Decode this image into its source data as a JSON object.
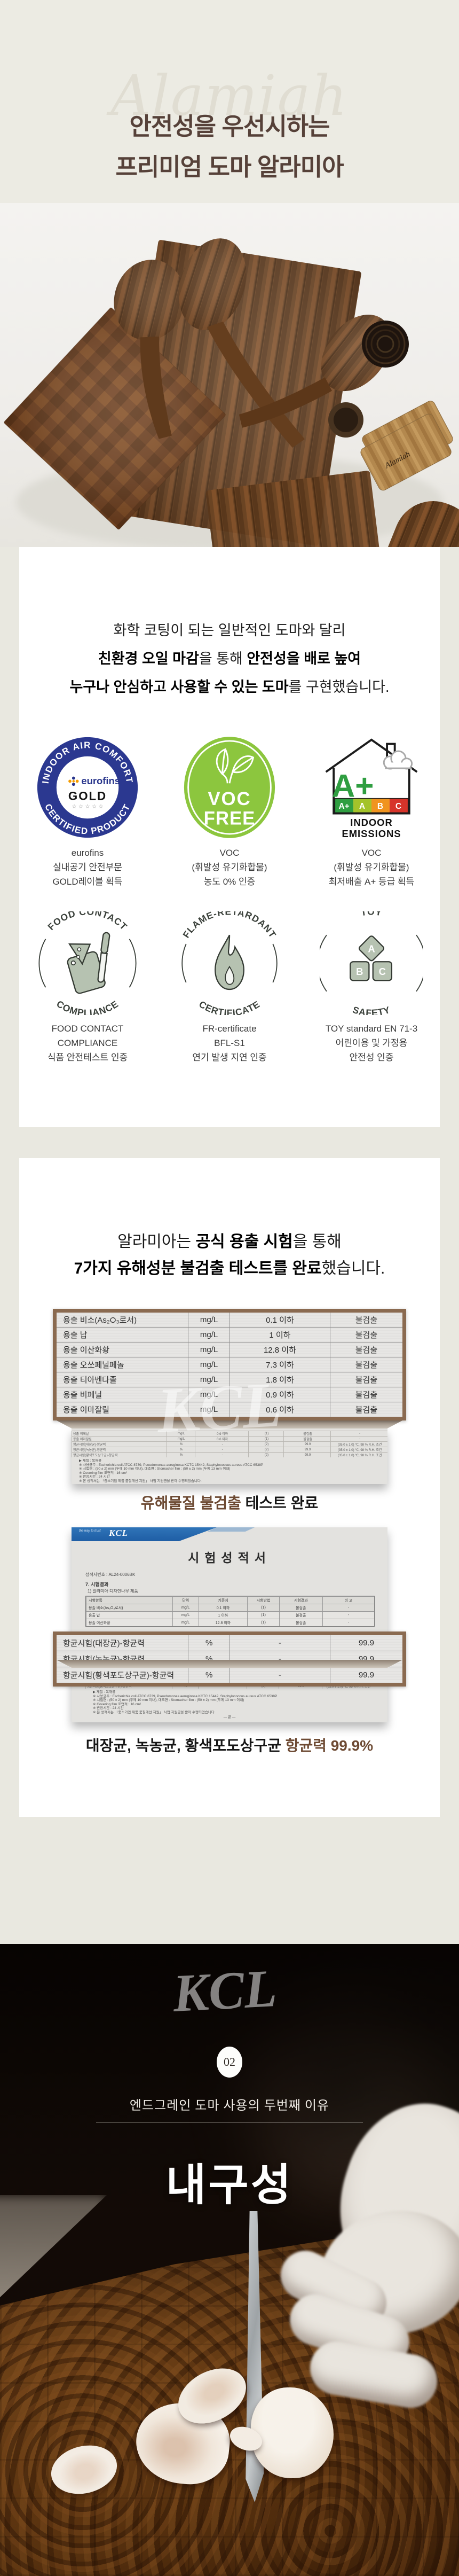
{
  "hero": {
    "watermark": "Alamiah",
    "title1": "안전성을 우선시하는",
    "title2": "프리미엄 도마 알라미아"
  },
  "photo": {
    "brand_signature": "Alamiah"
  },
  "intro": {
    "l1": "화학 코팅이 되는 일반적인 도마와 달리",
    "l2a": "친환경 오일 마감",
    "l2b": "을 통해 ",
    "l2c": "안전성을 배로 높여",
    "l3a": "누구나 안심하고 사용할 수 있는 도마",
    "l3b": "를 구현했습니다."
  },
  "badges": {
    "row1": [
      {
        "arc_top": "INDOOR AIR COMFORT",
        "arc_bottom": "CERTIFIED PRODUCT",
        "center1": "eurofins",
        "center2": "GOLD",
        "stars": "☆ ☆ ☆ ☆ ☆",
        "cap1": "eurofins",
        "cap2": "실내공기 안전부문",
        "cap3": "GOLD레이블 획득"
      },
      {
        "line1": "VOC",
        "line2": "FREE",
        "cap1": "VOC",
        "cap2": "(휘발성 유기화합물)",
        "cap3": "농도 0% 인증"
      },
      {
        "grade": "A+",
        "scale": [
          "A+",
          "A",
          "B",
          "C"
        ],
        "label1": "INDOOR",
        "label2": "EMISSIONS",
        "cap1": "VOC",
        "cap2": "(휘발성 유기화합물)",
        "cap3": "최저배출 A+ 등급 획득"
      }
    ],
    "row2": [
      {
        "arc_top": "FOOD CONTACT",
        "arc_bottom": "COMPLIANCE",
        "cap1": "FOOD CONTACT",
        "cap2": "COMPLIANCE",
        "cap3": "식품 안전테스트 인증"
      },
      {
        "arc_top": "FLAME-RETARDANT",
        "arc_bottom": "CERTIFICATE",
        "cap1": "FR-certificate",
        "cap2": "BFL-S1",
        "cap3": "연기 발생 지연 인증"
      },
      {
        "arc_top": "TOY",
        "arc_bottom": "SAFETY",
        "blocks": [
          "A",
          "B",
          "C"
        ],
        "cap1": "TOY standard EN 71-3",
        "cap2": "어린이용 및 가정용",
        "cap3": "안전성 인증"
      }
    ]
  },
  "leach": {
    "h1a": "알라미아는 ",
    "h1b": "공식 용출 시험",
    "h1c": "을 통해",
    "h2a": "7가지 유해성분 불검출 테스트를 완료",
    "h2b": "했습니다."
  },
  "table1": {
    "rows": [
      [
        "용출 비소(As₂O₃로서)",
        "mg/L",
        "0.1 이하",
        "불검출"
      ],
      [
        "용출 납",
        "mg/L",
        "1 이하",
        "불검출"
      ],
      [
        "용출 이산화황",
        "mg/L",
        "12.8 이하",
        "불검출"
      ],
      [
        "용출 오쏘페닐페놀",
        "mg/L",
        "7.3 이하",
        "불검출"
      ],
      [
        "용출 티아벤다졸",
        "mg/L",
        "1.8 이하",
        "불검출"
      ],
      [
        "용출 비페닐",
        "mg/L",
        "0.9 이하",
        "불검출"
      ],
      [
        "용출 이마잘릴",
        "mg/L",
        "0.6 이하",
        "불검출"
      ]
    ]
  },
  "caption1": {
    "brown": "유해물질 불검출",
    "black": " 테스트 완료"
  },
  "report": {
    "tagline": "the way to trust",
    "logo": "KCL",
    "watermark": "KCL",
    "title": "시험성적서",
    "no": "성적서번호 : AL24-0006BK",
    "sec": "7. 시험결과",
    "sub": "1) 알라미아 디자인나무 제품",
    "cols": [
      "시험항목",
      "단위",
      "기준치",
      "시험방법",
      "시험결과",
      "비 고"
    ],
    "rows": [
      [
        "용출 비소(As₂O₃로서)",
        "mg/L",
        "0.1 이하",
        "(1)",
        "불검출",
        "-"
      ],
      [
        "용출 납",
        "mg/L",
        "1 이하",
        "(1)",
        "불검출",
        "-"
      ],
      [
        "용출 이산화황",
        "mg/L",
        "12.8 이하",
        "(1)",
        "불검출",
        "-"
      ]
    ],
    "tail_rows": [
      [
        "용출 비페닐",
        "mg/L",
        "0.9 이하",
        "(1)",
        "불검출",
        "-"
      ],
      [
        "용출 이마잘릴",
        "mg/L",
        "0.6 이하",
        "(1)",
        "불검출",
        "-"
      ],
      [
        "항균시험(대장균)-항균력",
        "%",
        "-",
        "(2)",
        "99.9",
        "(35.0 ± 1.0) ℃, 98 % R.H. 조건"
      ],
      [
        "항균시험(녹농균)-항균력",
        "%",
        "-",
        "(2)",
        "99.9",
        "(35.0 ± 1.0) ℃, 98 % R.H. 조건"
      ],
      [
        "항균시험(황색포도상구균)-항균력",
        "%",
        "-",
        "(2)",
        "99.9",
        "(35.0 ± 1.0) ℃, 98 % R.H. 조건"
      ]
    ],
    "fineprint": [
      "▶ 재질 : 목재류",
      "※ 사용균주 : Escherichia coli ATCC 8739, Pseudomonas aeruginosa KCTC 15442, Staphylococcus aureus ATCC 6538P",
      "※ 시험편 : (50 ± 2) mm (두께 10 mm 이내), 대조편 : Stomacher film : (50 ± 2) mm (두께 13 mm 이내)",
      "※ Covering film 표면적 : 16 cm²",
      "※ 반응시간 : 24 시간",
      "※ 본 성적서는 「중소기업 제품 품질개선 지원」 사업 지원금을 받아 수행되었습니다.",
      "— 끝 —"
    ]
  },
  "table2": {
    "rows": [
      [
        "항균시험(대장균)-항균력",
        "%",
        "-",
        "99.9"
      ],
      [
        "항균시험(녹농균)-항균력",
        "%",
        "-",
        "99.9"
      ],
      [
        "항균시험(황색포도상구균)-항균력",
        "%",
        "-",
        "99.9"
      ]
    ]
  },
  "caption2": {
    "black": "대장균, 녹농균, 황색포도상구균 ",
    "brown": "항균력 99.9%"
  },
  "durability": {
    "num": "02",
    "subtitle": "엔드그레인 도마 사용의 두번째 이유",
    "title": "내구성"
  }
}
